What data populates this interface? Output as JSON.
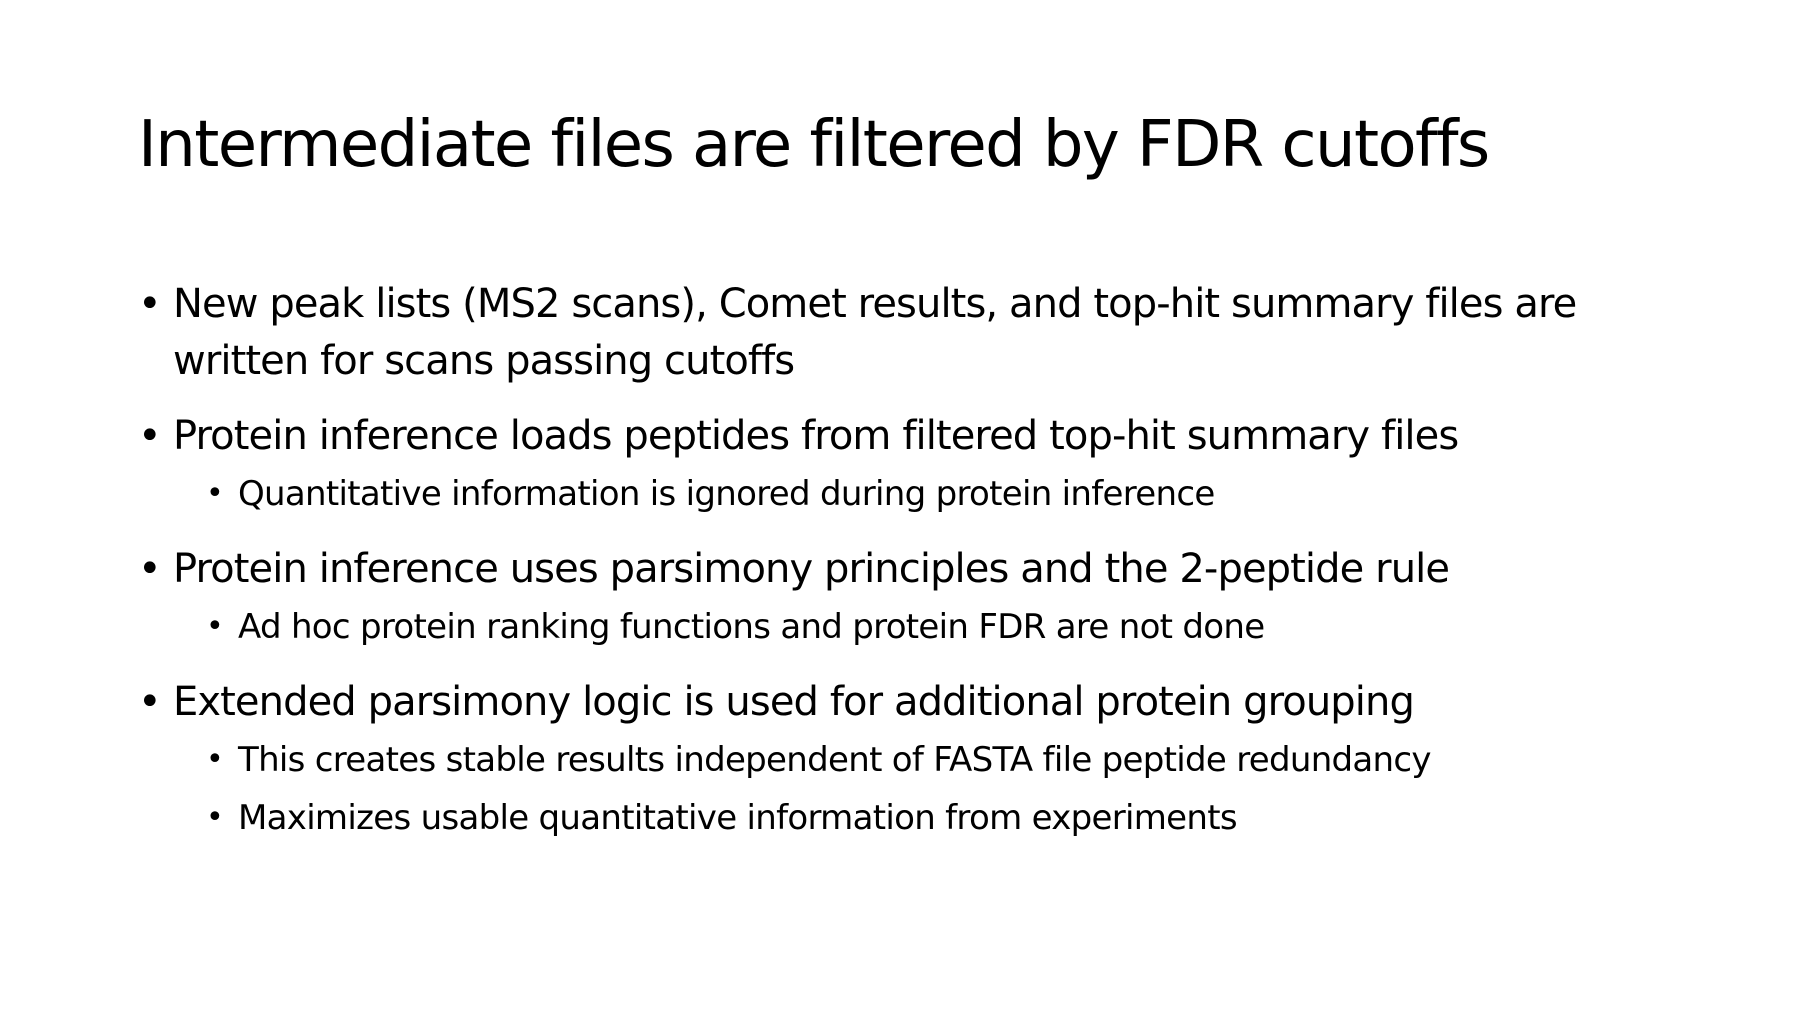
{
  "slide": {
    "title": "Intermediate files are filtered by FDR cutoffs",
    "bullet_glyph": "•",
    "points": [
      {
        "text": "New peak lists (MS2 scans), Comet results, and top-hit summary files are written for scans passing cutoffs",
        "subpoints": []
      },
      {
        "text": "Protein inference loads peptides from filtered top-hit summary files",
        "subpoints": [
          "Quantitative information is ignored during protein inference"
        ]
      },
      {
        "text": "Protein inference uses parsimony principles and the 2-peptide rule",
        "subpoints": [
          "Ad hoc protein ranking functions and protein FDR are not done"
        ]
      },
      {
        "text": "Extended parsimony logic is used for additional protein grouping",
        "subpoints": [
          "This creates stable results independent of FASTA file peptide redundancy",
          "Maximizes usable quantitative information from experiments"
        ]
      }
    ]
  }
}
